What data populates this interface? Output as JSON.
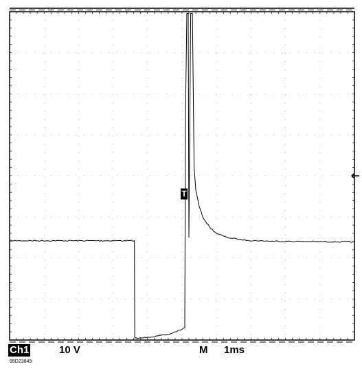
{
  "status_bar": {
    "channel": "Ch1",
    "volts_per_div": "10 V",
    "timebase_mode": "M",
    "time_per_div": "1ms"
  },
  "trigger_marker_label": "T",
  "ground_marker_glyph": "←",
  "figure_id": "95D23849",
  "chart_data": {
    "type": "line",
    "title": "",
    "xlabel": "",
    "ylabel": "",
    "x_unit": "ms",
    "y_unit": "V",
    "xlim": [
      0,
      10
    ],
    "ylim": [
      -40,
      40
    ],
    "grid": true,
    "grid_divisions": {
      "x": 10,
      "y": 8
    },
    "series": [
      {
        "x": [
          0,
          3.62,
          3.63,
          3.75,
          4.0,
          4.3,
          4.6,
          4.8,
          5.0,
          5.08,
          5.1,
          5.14,
          5.18,
          5.2,
          5.25,
          5.3,
          5.35,
          5.4,
          5.5,
          5.6,
          5.8,
          6.0,
          6.3,
          6.6,
          6.9,
          7.5,
          8.5,
          10.0
        ],
        "y": [
          -15.8,
          -15.8,
          -39.5,
          -39.6,
          -39.3,
          -39.0,
          -38.7,
          -38.0,
          -37.4,
          -37.0,
          14.0,
          39.6,
          39.6,
          -15.0,
          39.6,
          39.6,
          2.0,
          -3.5,
          -7.5,
          -10.0,
          -12.5,
          -14.0,
          -15.0,
          -15.4,
          -15.7,
          -15.9,
          -16.0,
          -16.1
        ]
      }
    ],
    "trigger_level": -4.4,
    "ground_level": 0
  }
}
